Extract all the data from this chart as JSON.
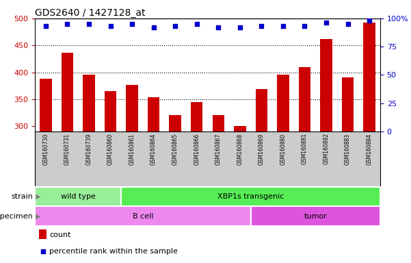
{
  "title": "GDS2640 / 1427128_at",
  "samples": [
    "GSM160730",
    "GSM160731",
    "GSM160739",
    "GSM160860",
    "GSM160861",
    "GSM160864",
    "GSM160865",
    "GSM160866",
    "GSM160867",
    "GSM160868",
    "GSM160869",
    "GSM160880",
    "GSM160881",
    "GSM160882",
    "GSM160883",
    "GSM160884"
  ],
  "counts": [
    388,
    436,
    396,
    365,
    376,
    353,
    320,
    345,
    320,
    300,
    369,
    396,
    410,
    462,
    390,
    492
  ],
  "percentiles": [
    93,
    95,
    95,
    93,
    95,
    92,
    93,
    95,
    92,
    92,
    93,
    93,
    93,
    96,
    95,
    98
  ],
  "ylim_left": [
    290,
    500
  ],
  "ylim_right": [
    0,
    100
  ],
  "yticks_left": [
    300,
    350,
    400,
    450,
    500
  ],
  "yticks_right": [
    0,
    25,
    50,
    75,
    100
  ],
  "bar_color": "#cc0000",
  "dot_color": "#0000cc",
  "strain_groups": [
    {
      "label": "wild type",
      "start": 0,
      "end": 4,
      "color": "#99ee99"
    },
    {
      "label": "XBP1s transgenic",
      "start": 4,
      "end": 16,
      "color": "#55ee55"
    }
  ],
  "specimen_groups": [
    {
      "label": "B cell",
      "start": 0,
      "end": 10,
      "color": "#ee88ee"
    },
    {
      "label": "tumor",
      "start": 10,
      "end": 16,
      "color": "#dd55dd"
    }
  ],
  "strain_label": "strain",
  "specimen_label": "specimen",
  "legend_count_label": "count",
  "legend_pct_label": "percentile rank within the sample",
  "bg_color": "#ffffff",
  "names_bg_color": "#cccccc",
  "left_axis_color": "#cc0000",
  "right_axis_color": "#0000cc",
  "bar_width": 0.55,
  "bar_bottom": 290
}
